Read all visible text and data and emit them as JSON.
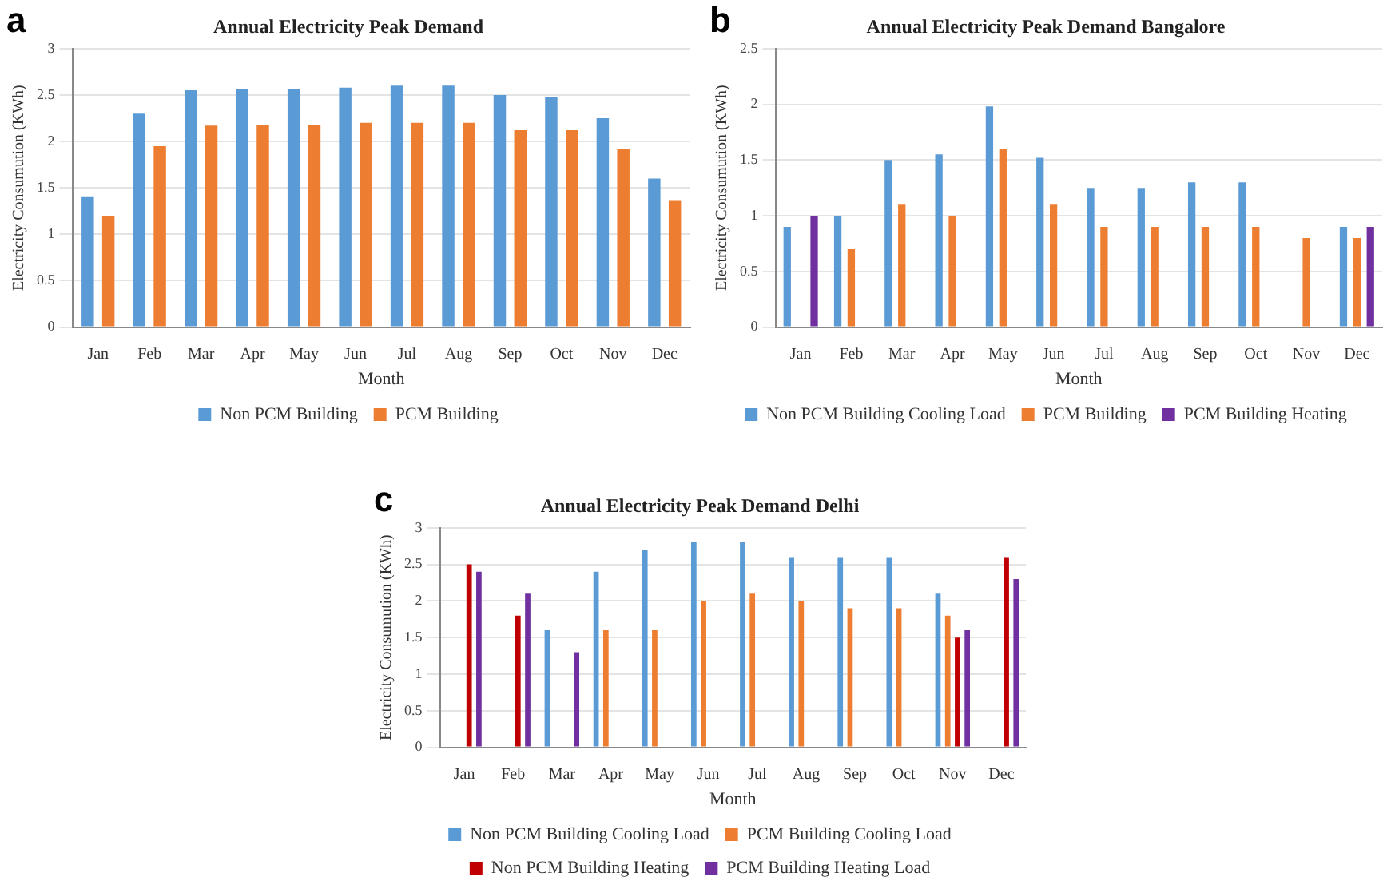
{
  "chart_data": [
    {
      "type": "bar",
      "title": "Annual Electricity Peak Demand",
      "xlabel": "Month",
      "ylabel": "Electricity Consumution (KWh)",
      "annotations": [
        "a"
      ],
      "categories": [
        "Jan",
        "Feb",
        "Mar",
        "Apr",
        "May",
        "Jun",
        "Jul",
        "Aug",
        "Sep",
        "Oct",
        "Nov",
        "Dec"
      ],
      "ylim": [
        0,
        3
      ],
      "yticks": [
        0,
        0.5,
        1,
        1.5,
        2,
        2.5,
        3
      ],
      "grid": "y",
      "legend": "bottom",
      "series": [
        {
          "name": "Non PCM Building",
          "color": "#5b9bd5",
          "values": [
            1.4,
            2.3,
            2.55,
            2.56,
            2.56,
            2.58,
            2.6,
            2.6,
            2.5,
            2.48,
            2.25,
            1.6
          ]
        },
        {
          "name": "PCM Building",
          "color": "#ed7d31",
          "values": [
            1.2,
            1.95,
            2.17,
            2.18,
            2.18,
            2.2,
            2.2,
            2.2,
            2.12,
            2.12,
            1.92,
            1.36
          ]
        }
      ]
    },
    {
      "type": "bar",
      "title": "Annual Electricity Peak Demand Bangalore",
      "xlabel": "Month",
      "ylabel": "Electricity Consumution (KWh)",
      "annotations": [
        "b"
      ],
      "categories": [
        "Jan",
        "Feb",
        "Mar",
        "Apr",
        "May",
        "Jun",
        "Jul",
        "Aug",
        "Sep",
        "Oct",
        "Nov",
        "Dec"
      ],
      "ylim": [
        0,
        2.5
      ],
      "yticks": [
        0,
        0.5,
        1,
        1.5,
        2,
        2.5
      ],
      "grid": "y",
      "legend": "bottom",
      "series": [
        {
          "name": "Non PCM Building Cooling Load",
          "color": "#5b9bd5",
          "values": [
            0.9,
            1.0,
            1.5,
            1.55,
            1.98,
            1.52,
            1.25,
            1.25,
            1.3,
            1.3,
            null,
            0.9
          ]
        },
        {
          "name": "PCM Building",
          "color": "#ed7d31",
          "values": [
            null,
            0.7,
            1.1,
            1.0,
            1.6,
            1.1,
            0.9,
            0.9,
            0.9,
            0.9,
            0.8,
            0.8
          ]
        },
        {
          "name": "PCM Building Heating",
          "color": "#7030a0",
          "values": [
            1.0,
            null,
            null,
            null,
            null,
            null,
            null,
            null,
            null,
            null,
            null,
            0.9
          ]
        }
      ]
    },
    {
      "type": "bar",
      "title": "Annual Electricity Peak Demand Delhi",
      "xlabel": "Month",
      "ylabel": "Electricity Consumution (KWh)",
      "annotations": [
        "c"
      ],
      "categories": [
        "Jan",
        "Feb",
        "Mar",
        "Apr",
        "May",
        "Jun",
        "Jul",
        "Aug",
        "Sep",
        "Oct",
        "Nov",
        "Dec"
      ],
      "ylim": [
        0,
        3
      ],
      "yticks": [
        0,
        0.5,
        1,
        1.5,
        2,
        2.5,
        3
      ],
      "grid": "y",
      "legend": "bottom",
      "series": [
        {
          "name": "Non PCM Building Cooling Load",
          "color": "#5b9bd5",
          "values": [
            null,
            null,
            1.6,
            2.4,
            2.7,
            2.8,
            2.8,
            2.6,
            2.6,
            2.6,
            2.1,
            null
          ]
        },
        {
          "name": "PCM Building Cooling Load",
          "color": "#ed7d31",
          "values": [
            null,
            null,
            null,
            1.6,
            1.6,
            2.0,
            2.1,
            2.0,
            1.9,
            1.9,
            1.8,
            null
          ]
        },
        {
          "name": "Non PCM Building Heating",
          "color": "#c00000",
          "values": [
            2.5,
            1.8,
            null,
            null,
            null,
            null,
            null,
            null,
            null,
            null,
            1.5,
            2.6
          ]
        },
        {
          "name": "PCM Building Heating Load",
          "color": "#7030a0",
          "values": [
            2.4,
            2.1,
            1.3,
            null,
            null,
            null,
            null,
            null,
            null,
            null,
            1.6,
            2.3
          ]
        }
      ]
    }
  ]
}
